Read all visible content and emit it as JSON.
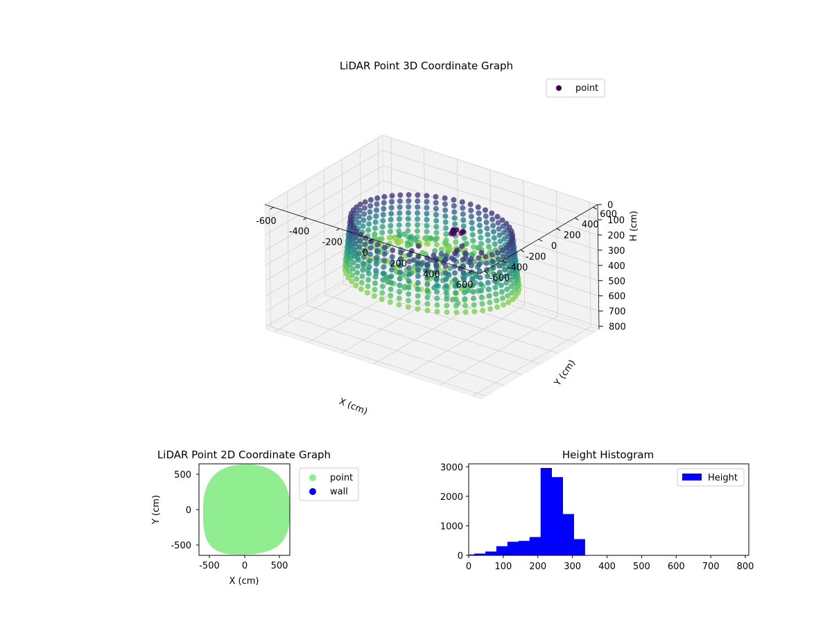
{
  "colors": {
    "viridis": [
      "#440154",
      "#3b528b",
      "#21918c",
      "#5ec962",
      "#fde725"
    ],
    "scatter2d_point": "#90ee90",
    "scatter2d_wall": "#0000ff",
    "hist_bar": "#0000ff",
    "pane": "#f2f2f2",
    "grid": "#d0d0d0"
  },
  "chart_data": [
    {
      "type": "scatter",
      "projection": "3d",
      "title": "LiDAR Point 3D Coordinate Graph",
      "xlabel": "X (cm)",
      "ylabel": "Y (cm)",
      "zlabel": "H (cm)",
      "xlim": [
        -650,
        650
      ],
      "ylim": [
        -650,
        650
      ],
      "zlim": [
        0,
        820
      ],
      "z_inverted": true,
      "xticks": [
        "-600",
        "-400",
        "-200",
        "0",
        "200",
        "400",
        "600"
      ],
      "yticks": [
        "-600",
        "-400",
        "-200",
        "0",
        "200",
        "400",
        "600"
      ],
      "zticks": [
        "0",
        "100",
        "200",
        "300",
        "400",
        "500",
        "600",
        "700",
        "800"
      ],
      "legend": [
        "point"
      ],
      "legend_loc": "upper right",
      "colormap": "viridis",
      "grid": true,
      "shape": "ring of vertical scan columns around a bowl-shaped floor",
      "ring_radius_cm": 450,
      "ring_height_range_cm": [
        150,
        480
      ],
      "floor_height_range_cm": [
        280,
        380
      ]
    },
    {
      "type": "scatter",
      "title": "LiDAR Point 2D Coordinate Graph",
      "xlabel": "X (cm)",
      "ylabel": "Y (cm)",
      "xlim": [
        -650,
        650
      ],
      "ylim": [
        -650,
        650
      ],
      "xticks": [
        "-500",
        "0",
        "500"
      ],
      "yticks": [
        "-500",
        "0",
        "500"
      ],
      "series": [
        {
          "name": "point",
          "color": "#90ee90",
          "shape": "filled disc",
          "extent_cm": [
            -600,
            650,
            -640,
            650
          ]
        },
        {
          "name": "wall",
          "color": "#0000ff",
          "points": []
        }
      ],
      "legend_loc": "outside right"
    },
    {
      "type": "bar",
      "subtype": "histogram",
      "title": "Height Histogram",
      "xlim": [
        0,
        810
      ],
      "ylim": [
        0,
        3100
      ],
      "xticks": [
        "0",
        "100",
        "200",
        "300",
        "400",
        "500",
        "600",
        "700",
        "800"
      ],
      "yticks": [
        "0",
        "1000",
        "2000",
        "3000"
      ],
      "series": [
        {
          "name": "Height",
          "color": "#0000ff"
        }
      ],
      "bin_edges": [
        0,
        16,
        32,
        48,
        64,
        80,
        96,
        112,
        128,
        144,
        160,
        176,
        192,
        208,
        224,
        240,
        256,
        272,
        288,
        304,
        320,
        336,
        352,
        368,
        384,
        400
      ],
      "values": [
        30,
        60,
        60,
        130,
        130,
        310,
        310,
        460,
        460,
        490,
        490,
        620,
        620,
        2960,
        2960,
        2650,
        2650,
        1400,
        1400,
        550,
        550,
        0,
        0,
        0,
        0
      ],
      "legend_loc": "upper right"
    }
  ]
}
